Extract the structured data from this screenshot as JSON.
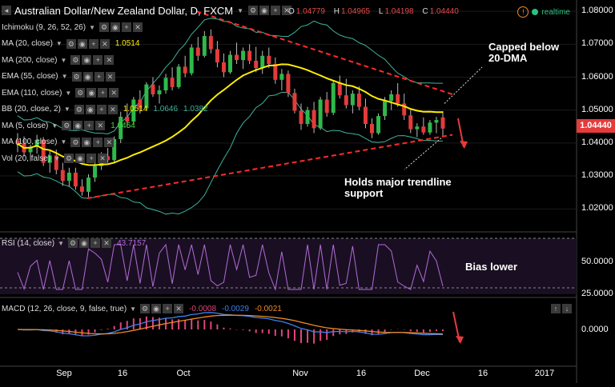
{
  "header": {
    "title": "Australian Dollar/New Zealand Dollar, D, FXCM",
    "ohlc": [
      {
        "key": "O",
        "value": "1.04779"
      },
      {
        "key": "H",
        "value": "1.04965"
      },
      {
        "key": "L",
        "value": "1.04198"
      },
      {
        "key": "C",
        "value": "1.04440"
      }
    ],
    "realtime_label": "realtime",
    "warning_icon": "warning-icon"
  },
  "indicators": [
    {
      "label": "Ichimoku (9, 26, 52, 26)",
      "value": "",
      "value_color": ""
    },
    {
      "label": "MA (20, close)",
      "value": "1.0514",
      "value_color": "#ffee00"
    },
    {
      "label": "MA (200, close)",
      "value": "",
      "value_color": ""
    },
    {
      "label": "EMA (55, close)",
      "value": "",
      "value_color": ""
    },
    {
      "label": "EMA (110, close)",
      "value": "",
      "value_color": ""
    },
    {
      "label": "BB (20, close, 2)",
      "value": "1.0514",
      "value_color": "#ffee00",
      "value2": "1.0646",
      "value3": "1.0382"
    },
    {
      "label": "MA (5, close)",
      "value": "1.0454",
      "value_color": "#44dd44"
    },
    {
      "label": "MA (100, close)",
      "value": "",
      "value_color": ""
    },
    {
      "label": "Vol (20, false)",
      "value": "",
      "value_color": ""
    }
  ],
  "panels": {
    "rsi": {
      "label": "RSI (14, close)",
      "value": "43.7157",
      "ticks": [
        "50.0000",
        "25.0000"
      ]
    },
    "macd": {
      "label": "MACD (12, 26, close, 9, false, true)",
      "values": [
        "-0.0008",
        "-0.0029",
        "-0.0021"
      ],
      "ticks": [
        "0.0000"
      ]
    }
  },
  "annotations": {
    "capped": "Capped below\n20-DMA",
    "holds": "Holds major trendline\nsupport",
    "bias": "Bias lower"
  },
  "price_tag": "1.04440",
  "colors": {
    "up": "#2fb94a",
    "down": "#e53b3b",
    "ma20": "#ffee00",
    "bb": "#3fb29a",
    "trend": "#ff2a2a"
  },
  "chart_data": {
    "type": "candlestick",
    "title": "Australian Dollar/New Zealand Dollar, D, FXCM",
    "y_ticks": [
      "1.08000",
      "1.07000",
      "1.06000",
      "1.05000",
      "1.04000",
      "1.03000",
      "1.02000"
    ],
    "ylim": [
      1.0135,
      1.0815
    ],
    "x_ticks": [
      "Sep",
      "16",
      "Oct",
      "Nov",
      "16",
      "Dec",
      "16",
      "2017"
    ],
    "candles": [
      [
        1.0408,
        1.043,
        1.0372,
        1.0398
      ],
      [
        1.0398,
        1.042,
        1.036,
        1.0372
      ],
      [
        1.0372,
        1.0395,
        1.0345,
        1.0388
      ],
      [
        1.0388,
        1.0425,
        1.0368,
        1.041
      ],
      [
        1.041,
        1.0418,
        1.033,
        1.034
      ],
      [
        1.034,
        1.0375,
        1.031,
        1.0362
      ],
      [
        1.0362,
        1.038,
        1.0305,
        1.0318
      ],
      [
        1.0318,
        1.034,
        1.027,
        1.0285
      ],
      [
        1.0285,
        1.0325,
        1.0268,
        1.031
      ],
      [
        1.031,
        1.0325,
        1.0258,
        1.0268
      ],
      [
        1.0268,
        1.029,
        1.024,
        1.0252
      ],
      [
        1.0252,
        1.0305,
        1.0236,
        1.0295
      ],
      [
        1.0295,
        1.034,
        1.0282,
        1.033
      ],
      [
        1.033,
        1.0372,
        1.0318,
        1.036
      ],
      [
        1.036,
        1.0385,
        1.034,
        1.0348
      ],
      [
        1.0348,
        1.042,
        1.034,
        1.0412
      ],
      [
        1.0412,
        1.0495,
        1.04,
        1.048
      ],
      [
        1.048,
        1.052,
        1.045,
        1.0465
      ],
      [
        1.0465,
        1.054,
        1.0455,
        1.0532
      ],
      [
        1.0532,
        1.056,
        1.049,
        1.0505
      ],
      [
        1.0505,
        1.0585,
        1.05,
        1.0578
      ],
      [
        1.0578,
        1.06,
        1.054,
        1.0548
      ],
      [
        1.0548,
        1.0575,
        1.052,
        1.056
      ],
      [
        1.056,
        1.061,
        1.055,
        1.0598
      ],
      [
        1.0598,
        1.063,
        1.056,
        1.057
      ],
      [
        1.057,
        1.064,
        1.0565,
        1.0632
      ],
      [
        1.0632,
        1.0665,
        1.06,
        1.0612
      ],
      [
        1.0612,
        1.07,
        1.0605,
        1.069
      ],
      [
        1.069,
        1.0722,
        1.065,
        1.0665
      ],
      [
        1.0665,
        1.074,
        1.066,
        1.0725
      ],
      [
        1.0725,
        1.0745,
        1.0672,
        1.0685
      ],
      [
        1.0685,
        1.071,
        1.063,
        1.0645
      ],
      [
        1.0645,
        1.0672,
        1.06,
        1.0615
      ],
      [
        1.0615,
        1.068,
        1.061,
        1.0668
      ],
      [
        1.0668,
        1.0705,
        1.064,
        1.0652
      ],
      [
        1.0652,
        1.069,
        1.0625,
        1.068
      ],
      [
        1.068,
        1.07,
        1.064,
        1.065
      ],
      [
        1.065,
        1.0692,
        1.0615,
        1.0628
      ],
      [
        1.0628,
        1.068,
        1.061,
        1.0665
      ],
      [
        1.0665,
        1.069,
        1.0628,
        1.064
      ],
      [
        1.064,
        1.066,
        1.058,
        1.0592
      ],
      [
        1.0592,
        1.0625,
        1.056,
        1.061
      ],
      [
        1.061,
        1.062,
        1.054,
        1.0552
      ],
      [
        1.0552,
        1.0565,
        1.049,
        1.0498
      ],
      [
        1.0498,
        1.052,
        1.044,
        1.0458
      ],
      [
        1.0458,
        1.051,
        1.045,
        1.05
      ],
      [
        1.05,
        1.0525,
        1.043,
        1.0445
      ],
      [
        1.0445,
        1.054,
        1.044,
        1.0532
      ],
      [
        1.0532,
        1.0555,
        1.048,
        1.0492
      ],
      [
        1.0492,
        1.059,
        1.0485,
        1.0582
      ],
      [
        1.0582,
        1.0605,
        1.0535,
        1.0545
      ],
      [
        1.0545,
        1.0595,
        1.0505,
        1.0515
      ],
      [
        1.0515,
        1.056,
        1.049,
        1.055
      ],
      [
        1.055,
        1.0572,
        1.05,
        1.051
      ],
      [
        1.051,
        1.0535,
        1.0445,
        1.0458
      ],
      [
        1.0458,
        1.0475,
        1.0415,
        1.043
      ],
      [
        1.043,
        1.049,
        1.0425,
        1.0482
      ],
      [
        1.0482,
        1.054,
        1.047,
        1.0528
      ],
      [
        1.0528,
        1.056,
        1.05,
        1.0548
      ],
      [
        1.0548,
        1.0582,
        1.051,
        1.052
      ],
      [
        1.052,
        1.055,
        1.047,
        1.0484
      ],
      [
        1.0484,
        1.05,
        1.043,
        1.0442
      ],
      [
        1.0442,
        1.046,
        1.0418,
        1.045
      ],
      [
        1.045,
        1.0478,
        1.0425,
        1.0432
      ],
      [
        1.0432,
        1.047,
        1.0425,
        1.0462
      ],
      [
        1.0462,
        1.048,
        1.043,
        1.047
      ],
      [
        1.0478,
        1.0497,
        1.042,
        1.0444
      ]
    ],
    "series": [
      {
        "name": "MA (20, close)"
      },
      {
        "name": "BB (20, close, 2)"
      },
      {
        "name": "RSI (14, close)"
      },
      {
        "name": "MACD (12, 26, close, 9, false, true)"
      }
    ],
    "rsi_ticks": [
      "50.0000",
      "25.0000"
    ],
    "macd_ticks": [
      "0.0000"
    ]
  }
}
